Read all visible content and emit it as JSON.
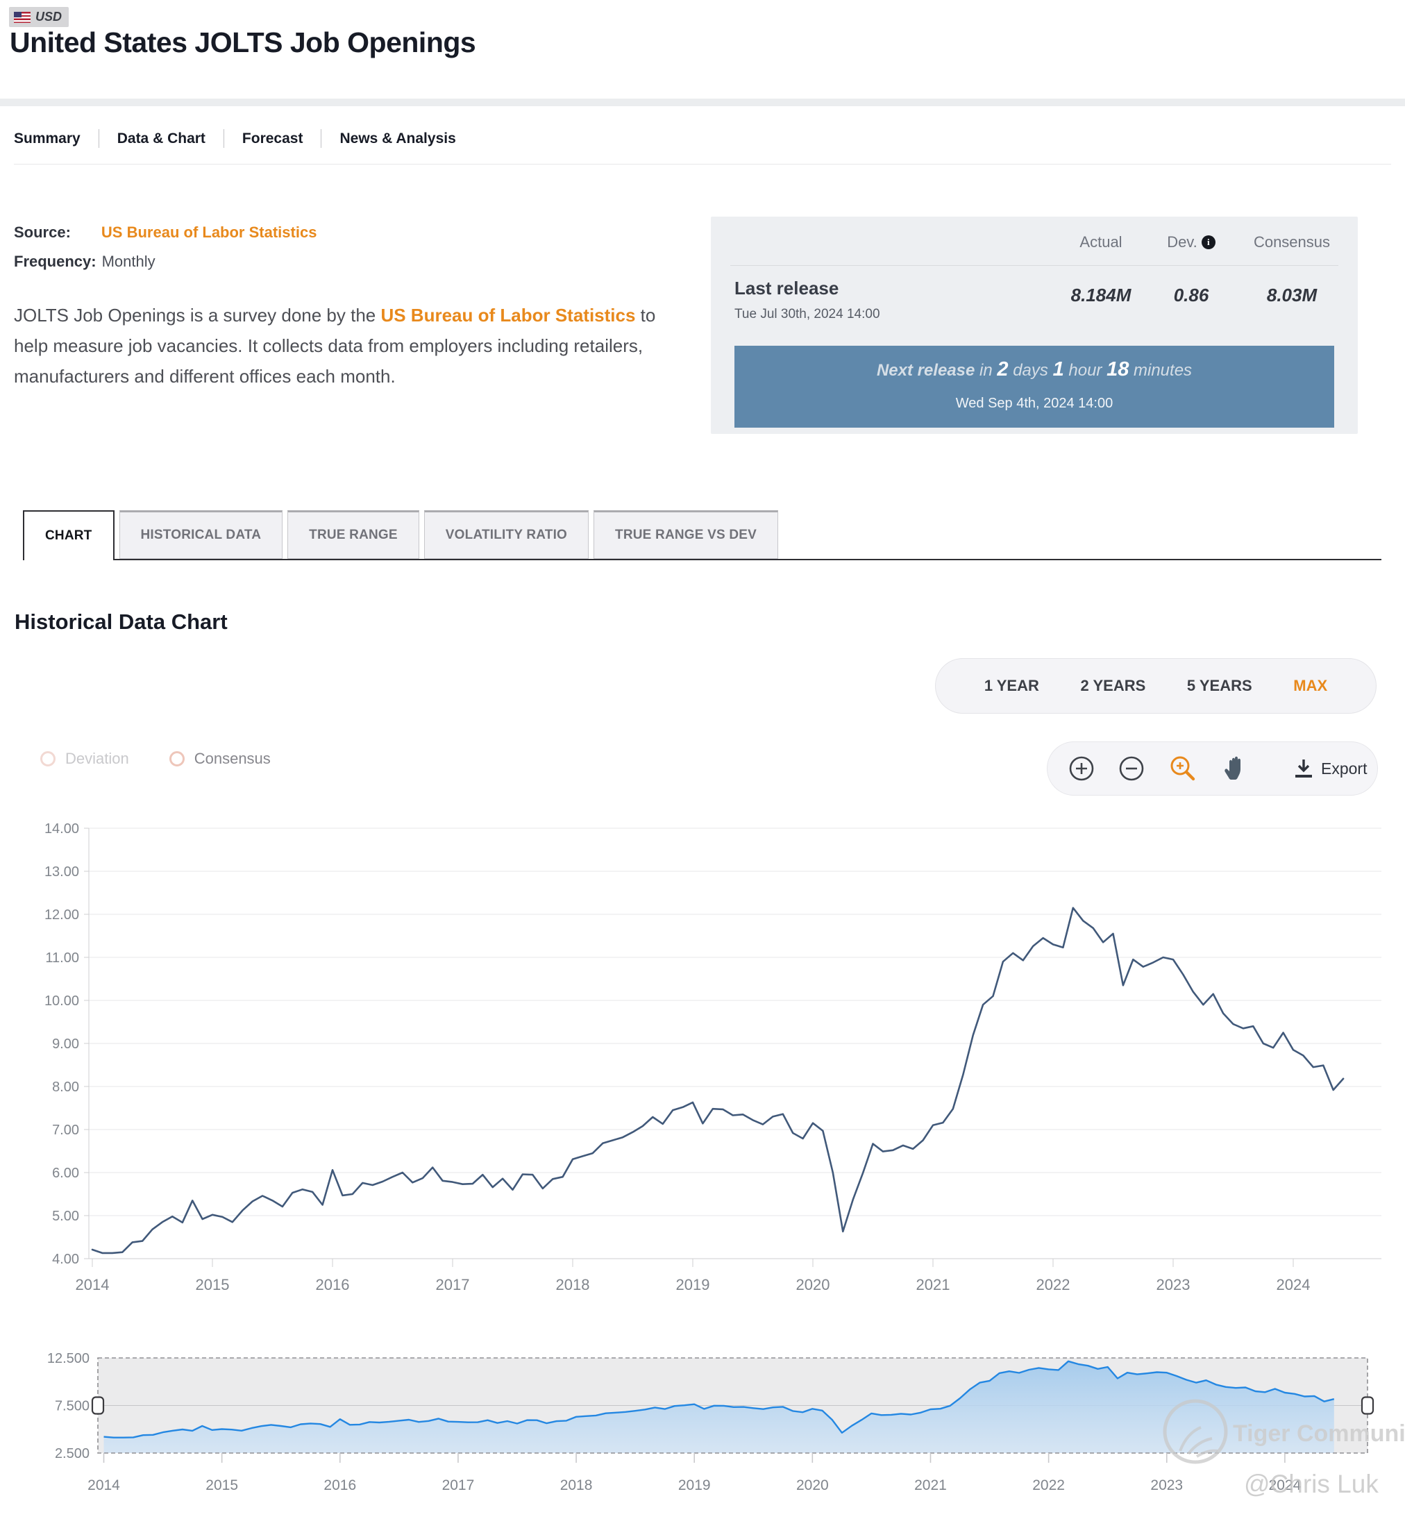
{
  "header": {
    "currency_badge": "USD",
    "title": "United States JOLTS Job Openings"
  },
  "nav": {
    "items": [
      "Summary",
      "Data & Chart",
      "Forecast",
      "News & Analysis"
    ]
  },
  "meta": {
    "source_label": "Source:",
    "source_value": "US Bureau of Labor Statistics",
    "frequency_label": "Frequency:",
    "frequency_value": "Monthly",
    "description_part1": "JOLTS Job Openings is a survey done by the ",
    "description_link": "US Bureau of Labor Statistics",
    "description_part2": " to help measure job vacancies. It collects data from employers including retailers, manufacturers and different offices each month."
  },
  "release_panel": {
    "col_actual": "Actual",
    "col_dev": "Dev.",
    "col_consensus": "Consensus",
    "info_icon_glyph": "i",
    "last_release_label": "Last release",
    "last_release_date": "Tue Jul 30th, 2024 14:00",
    "actual_value": "8.184M",
    "dev_value": "0.86",
    "consensus_value": "8.03M",
    "next_release_lead": "Next release",
    "next_release_in": " in ",
    "days_num": "2",
    "days_word": " days ",
    "hours_num": "1",
    "hours_word": " hour ",
    "minutes_num": "18",
    "minutes_word": " minutes",
    "next_release_date": "Wed Sep 4th, 2024 14:00"
  },
  "tabs": {
    "items": [
      {
        "label": "CHART",
        "active": true
      },
      {
        "label": "HISTORICAL DATA",
        "active": false
      },
      {
        "label": "TRUE RANGE",
        "active": false
      },
      {
        "label": "VOLATILITY RATIO",
        "active": false
      },
      {
        "label": "TRUE RANGE VS DEV",
        "active": false
      }
    ]
  },
  "section_title": "Historical Data Chart",
  "range_buttons": [
    {
      "label": "1 YEAR",
      "active": false
    },
    {
      "label": "2 YEARS",
      "active": false
    },
    {
      "label": "5 YEARS",
      "active": false
    },
    {
      "label": "MAX",
      "active": true
    }
  ],
  "legend": [
    {
      "label": "Deviation",
      "ring_color": "#f2d9d3",
      "label_color": "#c9c9cc"
    },
    {
      "label": "Consensus",
      "ring_color": "#eec6ba",
      "label_color": "#86868c"
    }
  ],
  "toolbar": {
    "export_label": "Export"
  },
  "watermark": {
    "community": "Tiger Community",
    "user": "@Chris Luk"
  },
  "colors": {
    "accent_orange": "#e8891c",
    "banner_blue": "#5f88ab",
    "main_line": "#41597a",
    "navigator_line": "#2487e2",
    "grid": "#e7e7e9",
    "axis": "#cfcfd2",
    "tick_text": "#80858c"
  },
  "chart_data": {
    "type": "line",
    "title": "Historical Data Chart",
    "series_name": "JOLTS Job Openings",
    "unit": "millions",
    "frequency": "monthly",
    "start_month": "2014-01",
    "end_month": "2024-06",
    "x_tick_labels": [
      "2014",
      "2015",
      "2016",
      "2017",
      "2018",
      "2019",
      "2020",
      "2021",
      "2022",
      "2023",
      "2024"
    ],
    "main_axis": {
      "ymin": 4,
      "ymax": 14,
      "tick_step": 1
    },
    "navigator_axis": {
      "ymin": 2.5,
      "ymax": 12.5,
      "tick_labels": [
        "12.500",
        "7.500",
        "2.500"
      ],
      "tick_values": [
        12.5,
        7.5,
        2.5
      ]
    },
    "legend_position": "top-left",
    "grid": true,
    "values": [
      4.21,
      4.13,
      4.13,
      4.15,
      4.38,
      4.41,
      4.68,
      4.85,
      4.98,
      4.84,
      5.35,
      4.92,
      5.02,
      4.97,
      4.85,
      5.12,
      5.33,
      5.46,
      5.35,
      5.21,
      5.53,
      5.61,
      5.55,
      5.25,
      6.06,
      5.47,
      5.5,
      5.76,
      5.71,
      5.79,
      5.9,
      6.0,
      5.77,
      5.87,
      6.12,
      5.81,
      5.78,
      5.73,
      5.74,
      5.95,
      5.66,
      5.86,
      5.6,
      5.96,
      5.95,
      5.63,
      5.85,
      5.9,
      6.31,
      6.38,
      6.45,
      6.68,
      6.75,
      6.82,
      6.94,
      7.08,
      7.29,
      7.13,
      7.45,
      7.52,
      7.63,
      7.14,
      7.48,
      7.47,
      7.33,
      7.35,
      7.22,
      7.12,
      7.3,
      7.36,
      6.92,
      6.79,
      7.15,
      6.97,
      6.0,
      4.63,
      5.37,
      5.99,
      6.67,
      6.49,
      6.52,
      6.63,
      6.55,
      6.75,
      7.1,
      7.16,
      7.48,
      8.27,
      9.19,
      9.9,
      10.1,
      10.9,
      11.1,
      10.93,
      11.26,
      11.45,
      11.3,
      11.23,
      12.15,
      11.85,
      11.68,
      11.35,
      11.55,
      10.35,
      10.95,
      10.78,
      10.88,
      11.0,
      10.95,
      10.6,
      10.2,
      9.9,
      10.15,
      9.7,
      9.45,
      9.35,
      9.4,
      9.0,
      8.9,
      9.25,
      8.85,
      8.72,
      8.45,
      8.49,
      7.92,
      8.18
    ]
  }
}
